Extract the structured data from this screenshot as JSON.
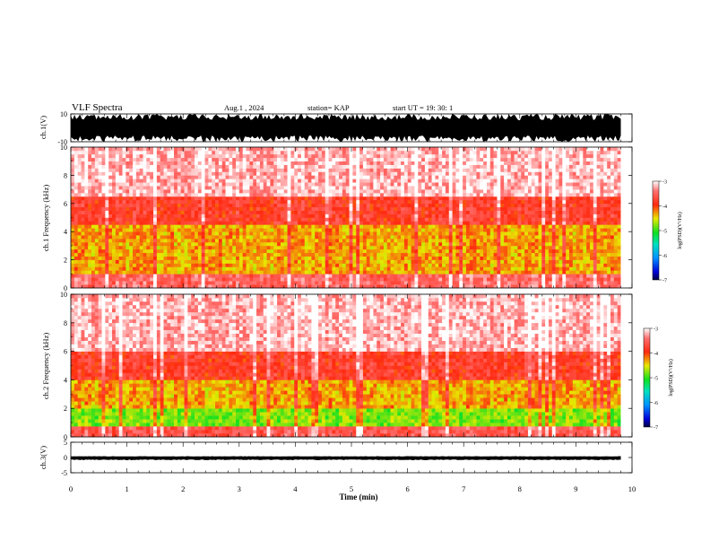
{
  "chart_data": {
    "type": "heatmap",
    "title": "VLF Spectra",
    "date": "Aug.1 , 2024",
    "station": "station= KAP",
    "start_ut": "start UT = 19: 30: 1",
    "xlabel": "Time (min)",
    "xlim": [
      0,
      10
    ],
    "x_ticks": [
      "0",
      "1",
      "2",
      "3",
      "4",
      "5",
      "6",
      "7",
      "8",
      "9",
      "10"
    ],
    "panels": [
      {
        "id": "ch1-waveform",
        "type": "line",
        "ylabel": "ch.1(V)",
        "ylim": [
          -10,
          10
        ],
        "y_ticks": [
          "10",
          "-10"
        ],
        "x_range_min": [
          0,
          9.8
        ],
        "envelope_v": [
          -10,
          10
        ]
      },
      {
        "id": "ch1-spectrogram",
        "type": "heatmap",
        "ylabel": "ch.1 Frequency (kHz)",
        "ylim": [
          0,
          10
        ],
        "y_ticks": [
          "0",
          "2",
          "4",
          "6",
          "8",
          "10"
        ],
        "x_range_min": [
          0,
          9.8
        ],
        "colorbar": {
          "label": "log(PSD)(V²/Hz)",
          "range": [
            -7,
            -3
          ],
          "ticks": [
            "-3",
            "-4",
            "-5",
            "-6",
            "-7"
          ]
        },
        "bands": [
          {
            "freq_khz": [
              0,
              0.9
            ],
            "log_psd": -3.5
          },
          {
            "freq_khz": [
              0.9,
              4.5
            ],
            "log_psd": -4.3
          },
          {
            "freq_khz": [
              4.5,
              6.5
            ],
            "log_psd": -3.8
          },
          {
            "freq_khz": [
              6.5,
              10
            ],
            "log_psd": -3.2
          }
        ]
      },
      {
        "id": "ch2-spectrogram",
        "type": "heatmap",
        "ylabel": "ch.2 Frequency (kHz)",
        "ylim": [
          0,
          10
        ],
        "y_ticks": [
          "0",
          "2",
          "4",
          "6",
          "8",
          "10"
        ],
        "x_range_min": [
          0,
          9.8
        ],
        "colorbar": {
          "label": "log(PSD)(V²/Hz)",
          "range": [
            -7,
            -3
          ],
          "ticks": [
            "-3",
            "-4",
            "-5",
            "-6",
            "-7"
          ]
        },
        "bands": [
          {
            "freq_khz": [
              0,
              0.8
            ],
            "log_psd": -3.6
          },
          {
            "freq_khz": [
              0.8,
              2.0
            ],
            "log_psd": -4.8
          },
          {
            "freq_khz": [
              2.0,
              4.0
            ],
            "log_psd": -4.3
          },
          {
            "freq_khz": [
              4.0,
              6.0
            ],
            "log_psd": -3.8
          },
          {
            "freq_khz": [
              6.0,
              10
            ],
            "log_psd": -3.2
          }
        ]
      },
      {
        "id": "ch3-waveform",
        "type": "line",
        "ylabel": "ch.3(V)",
        "ylim": [
          -5,
          5
        ],
        "y_ticks": [
          "5",
          "0",
          "-5"
        ],
        "x_range_min": [
          0,
          9.8
        ],
        "envelope_v": [
          -0.8,
          0.4
        ]
      }
    ]
  }
}
